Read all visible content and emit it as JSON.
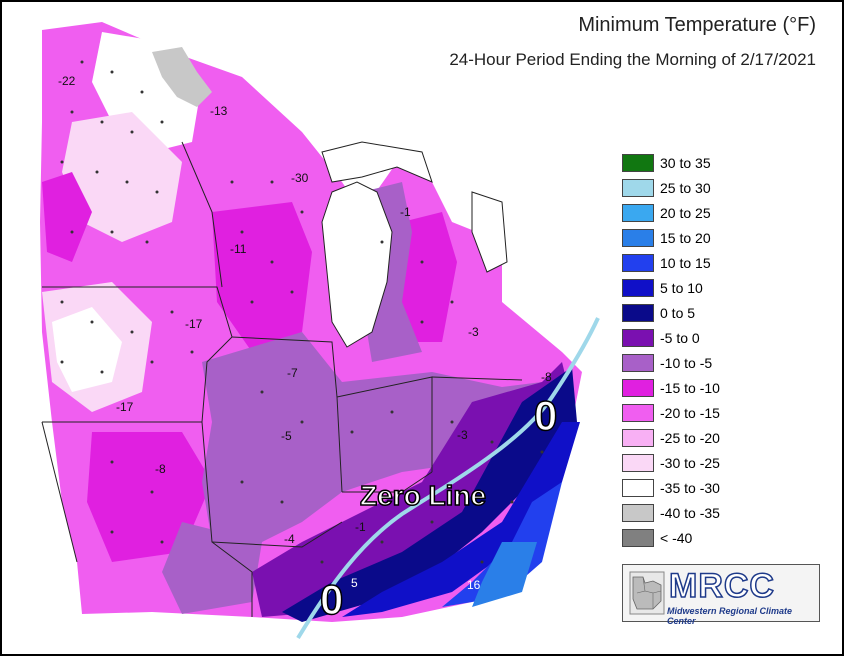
{
  "title": "Minimum Temperature (°F)",
  "subtitle": "24-Hour Period Ending the Morning of 2/17/2021",
  "legend": [
    {
      "label": "30 to 35",
      "color": "#117711"
    },
    {
      "label": "25 to 30",
      "color": "#9fd8ea"
    },
    {
      "label": "20 to 25",
      "color": "#3aa8f0"
    },
    {
      "label": "15 to 20",
      "color": "#2a7fe8"
    },
    {
      "label": "10 to 15",
      "color": "#2240ee"
    },
    {
      "label": "5 to 10",
      "color": "#1010c8"
    },
    {
      "label": "0 to 5",
      "color": "#0a0a8a"
    },
    {
      "label": "-5 to 0",
      "color": "#7a10b0"
    },
    {
      "label": "-10 to -5",
      "color": "#a860c8"
    },
    {
      "label": "-15 to -10",
      "color": "#e020e0"
    },
    {
      "label": "-20 to -15",
      "color": "#f05ef0"
    },
    {
      "label": "-25 to -20",
      "color": "#f8b0f4"
    },
    {
      "label": "-30 to -25",
      "color": "#fad8f6"
    },
    {
      "label": "-35 to -30",
      "color": "#ffffff"
    },
    {
      "label": "-40 to -35",
      "color": "#c8c8c8"
    },
    {
      "label": "< -40",
      "color": "#808080"
    }
  ],
  "annotations": {
    "zero_line": "Zero Line",
    "zero_upper": "0",
    "zero_lower": "0"
  },
  "values": [
    "-22",
    "-13",
    "-30",
    "-1",
    "-11",
    "-17",
    "-3",
    "-17",
    "-7",
    "-8",
    "-5",
    "-3",
    "-8",
    "-4",
    "-1",
    "5",
    "16"
  ],
  "logo": {
    "name": "MRCC",
    "full": "Midwestern Regional Climate Center"
  }
}
